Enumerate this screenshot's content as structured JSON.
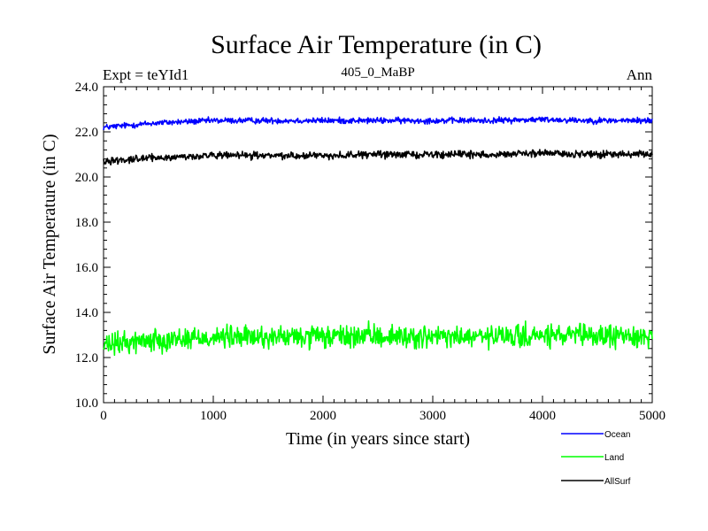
{
  "header": {
    "experiment": "Expt = teYId1",
    "period": "405_0_MaBP",
    "season": "Ann"
  },
  "chart_data": {
    "type": "line",
    "title": "Surface Air Temperature (in C)",
    "xlabel": "Time (in years since start)",
    "ylabel": "Surface Air Temperature (in C)",
    "xlim": [
      0,
      5000
    ],
    "ylim": [
      10.0,
      24.0
    ],
    "x_ticks": [
      0,
      1000,
      2000,
      3000,
      4000,
      5000
    ],
    "y_ticks": [
      10.0,
      12.0,
      14.0,
      16.0,
      18.0,
      20.0,
      22.0,
      24.0
    ],
    "x_tick_labels": [
      "0",
      "1000",
      "2000",
      "3000",
      "4000",
      "5000"
    ],
    "y_tick_labels": [
      "10.0",
      "12.0",
      "14.0",
      "16.0",
      "18.0",
      "20.0",
      "22.0",
      "24.0"
    ],
    "legend_position": "bottom-right, outside",
    "series": [
      {
        "name": "Ocean",
        "color": "#0000ff",
        "x": [
          0,
          250,
          500,
          750,
          1000,
          1500,
          2000,
          2500,
          3000,
          3500,
          4000,
          4500,
          5000
        ],
        "values": [
          22.2,
          22.3,
          22.4,
          22.45,
          22.5,
          22.5,
          22.5,
          22.5,
          22.5,
          22.5,
          22.55,
          22.5,
          22.5
        ],
        "noise": 0.12
      },
      {
        "name": "Land",
        "color": "#00ff00",
        "x": [
          0,
          250,
          500,
          750,
          1000,
          1500,
          2000,
          2500,
          3000,
          3500,
          4000,
          4500,
          5000
        ],
        "values": [
          12.5,
          12.7,
          12.8,
          12.85,
          12.9,
          12.9,
          12.9,
          12.95,
          12.9,
          12.9,
          12.95,
          12.95,
          12.95
        ],
        "noise": 0.45
      },
      {
        "name": "AllSurf",
        "color": "#000000",
        "x": [
          0,
          250,
          500,
          750,
          1000,
          1500,
          2000,
          2500,
          3000,
          3500,
          4000,
          4500,
          5000
        ],
        "values": [
          20.7,
          20.8,
          20.85,
          20.9,
          20.95,
          20.95,
          20.95,
          21.0,
          21.0,
          21.0,
          21.05,
          21.0,
          21.0
        ],
        "noise": 0.14
      }
    ]
  }
}
